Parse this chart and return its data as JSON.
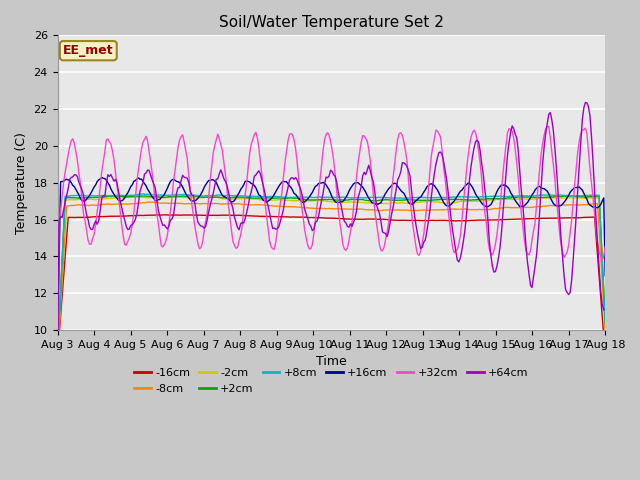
{
  "title": "Soil/Water Temperature Set 2",
  "xlabel": "Time",
  "ylabel": "Temperature (C)",
  "ylim": [
    10,
    26
  ],
  "yticks": [
    10,
    12,
    14,
    16,
    18,
    20,
    22,
    24,
    26
  ],
  "annotation_text": "EE_met",
  "annotation_bg": "#f5f0c8",
  "annotation_border": "#9b8520",
  "bg_color": "#e8e8e8",
  "legend_entries": [
    {
      "label": "-16cm",
      "color": "#cc0000"
    },
    {
      "label": "-8cm",
      "color": "#ff8800"
    },
    {
      "label": "-2cm",
      "color": "#cccc00"
    },
    {
      "label": "+2cm",
      "color": "#00aa00"
    },
    {
      "label": "+8cm",
      "color": "#00bbbb"
    },
    {
      "label": "+16cm",
      "color": "#000099"
    },
    {
      "label": "+32cm",
      "color": "#ff44cc"
    },
    {
      "label": "+64cm",
      "color": "#9900cc"
    }
  ],
  "title_fontsize": 11,
  "label_fontsize": 9,
  "tick_fontsize": 8,
  "legend_fontsize": 8
}
